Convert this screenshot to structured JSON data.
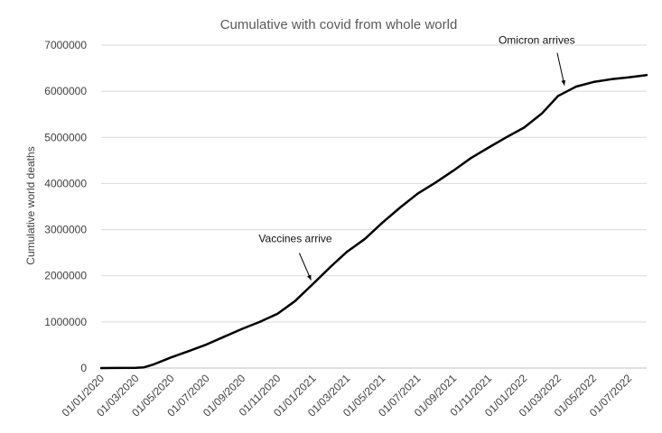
{
  "chart_data": {
    "type": "line",
    "title": "Cumulative with covid from whole world",
    "xlabel": "",
    "ylabel": "Cumulative world deaths",
    "ylim": [
      0,
      7000000
    ],
    "yticks": [
      "0",
      "1000000",
      "2000000",
      "3000000",
      "4000000",
      "5000000",
      "6000000",
      "7000000"
    ],
    "xlim": [
      "2020-01-01",
      "2022-08-01"
    ],
    "xticks": [
      "01/01/2020",
      "01/03/2020",
      "01/05/2020",
      "01/07/2020",
      "01/09/2020",
      "01/11/2020",
      "01/01/2021",
      "01/03/2021",
      "01/05/2021",
      "01/07/2021",
      "01/09/2021",
      "01/11/2021",
      "01/01/2022",
      "01/03/2022",
      "01/05/2022",
      "01/07/2022"
    ],
    "grid": "horizontal",
    "series": [
      {
        "points": [
          [
            "2020-01-01",
            0
          ],
          [
            "2020-03-01",
            5000
          ],
          [
            "2020-03-15",
            15000
          ],
          [
            "2020-04-01",
            80000
          ],
          [
            "2020-05-01",
            230000
          ],
          [
            "2020-06-01",
            370000
          ],
          [
            "2020-07-01",
            510000
          ],
          [
            "2020-08-01",
            680000
          ],
          [
            "2020-09-01",
            850000
          ],
          [
            "2020-10-01",
            1000000
          ],
          [
            "2020-11-01",
            1180000
          ],
          [
            "2020-12-01",
            1450000
          ],
          [
            "2021-01-01",
            1820000
          ],
          [
            "2021-02-01",
            2200000
          ],
          [
            "2021-03-01",
            2520000
          ],
          [
            "2021-04-01",
            2800000
          ],
          [
            "2021-05-01",
            3150000
          ],
          [
            "2021-06-01",
            3480000
          ],
          [
            "2021-07-01",
            3780000
          ],
          [
            "2021-08-01",
            4020000
          ],
          [
            "2021-09-01",
            4280000
          ],
          [
            "2021-10-01",
            4550000
          ],
          [
            "2021-11-01",
            4780000
          ],
          [
            "2021-12-01",
            5000000
          ],
          [
            "2022-01-01",
            5210000
          ],
          [
            "2022-02-01",
            5520000
          ],
          [
            "2022-03-01",
            5900000
          ],
          [
            "2022-04-01",
            6100000
          ],
          [
            "2022-05-01",
            6200000
          ],
          [
            "2022-06-01",
            6260000
          ],
          [
            "2022-07-01",
            6300000
          ],
          [
            "2022-08-01",
            6350000
          ]
        ]
      }
    ],
    "annotations": [
      {
        "text": "Vaccines arrive",
        "date": "2021-01-01",
        "value": 1750000
      },
      {
        "text": "Omicron arrives",
        "date": "2022-03-15",
        "value": 6010000
      }
    ]
  }
}
